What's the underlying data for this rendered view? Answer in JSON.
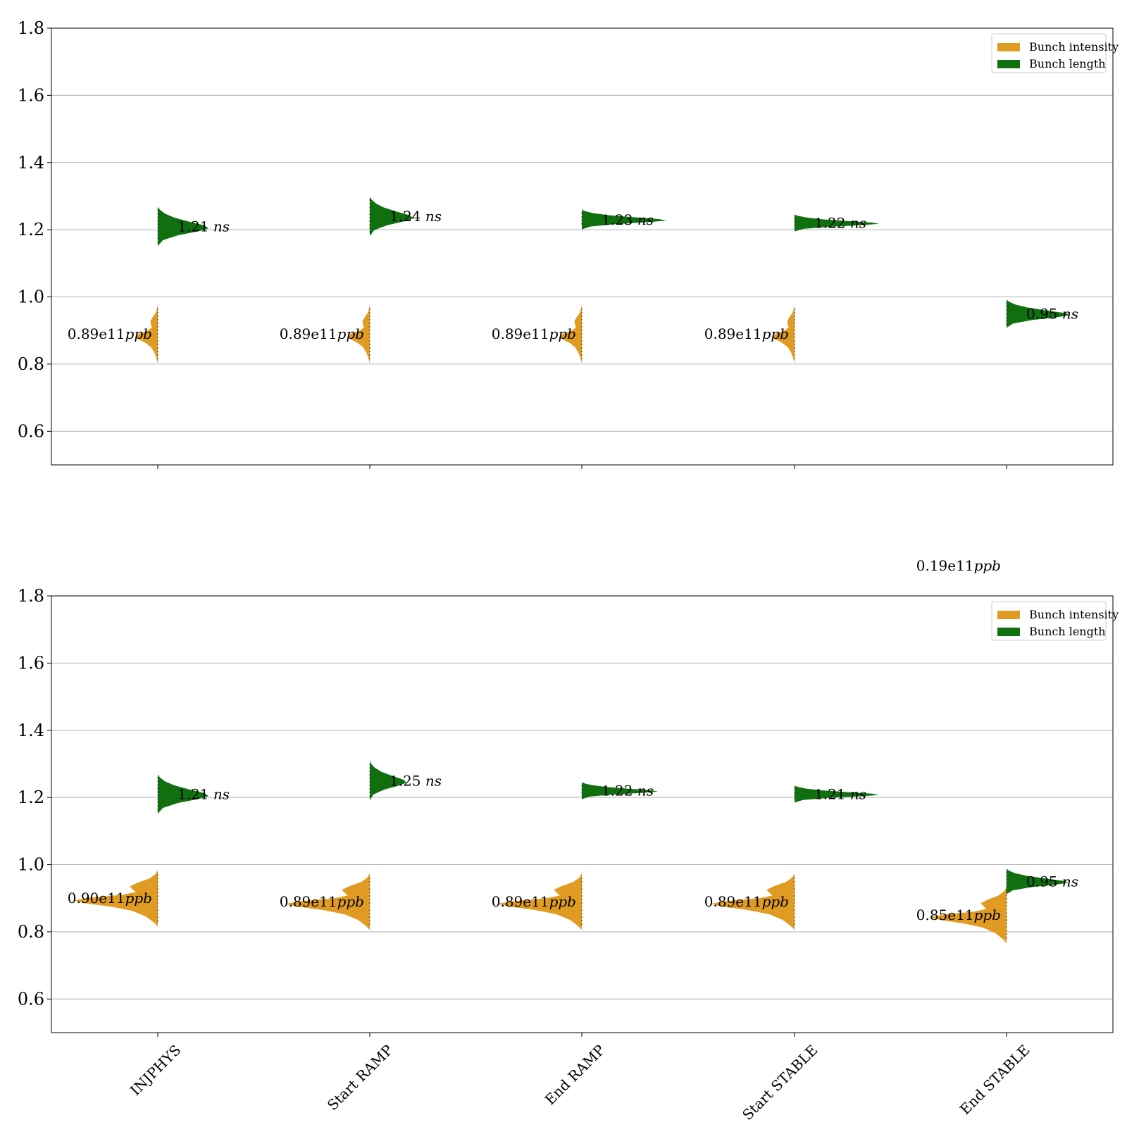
{
  "colors": {
    "intensity": "#e09b22",
    "length": "#107010",
    "grid": "#b0b0b0",
    "axis": "#000000"
  },
  "chart_data": [
    {
      "type": "violin",
      "ylim": [
        0.5,
        1.8
      ],
      "yticks": [
        "0.6",
        "0.8",
        "1.0",
        "1.2",
        "1.4",
        "1.6",
        "1.8"
      ],
      "grid": "horizontal",
      "legend": {
        "placement": "top-right",
        "entries": [
          "Bunch intensity",
          "Bunch length"
        ]
      },
      "categories": [
        "INJPHYS",
        "Start RAMP",
        "End RAMP",
        "Start STABLE",
        "End STABLE"
      ],
      "show_category_labels": false,
      "series": [
        {
          "name": "Bunch intensity",
          "values": [
            0.89,
            0.89,
            0.89,
            0.89,
            null
          ],
          "annotations": [
            "0.89e11",
            "0.89e11",
            "0.89e11",
            "0.89e11",
            "0.19e11"
          ],
          "annotation_unit": "ppb"
        },
        {
          "name": "Bunch length",
          "values": [
            1.21,
            1.24,
            1.23,
            1.22,
            0.95
          ],
          "annotations": [
            "1.21",
            "1.24",
            "1.23",
            "1.22",
            "0.95"
          ],
          "annotation_unit": "ns"
        }
      ]
    },
    {
      "type": "violin",
      "ylim": [
        0.5,
        1.8
      ],
      "yticks": [
        "0.6",
        "0.8",
        "1.0",
        "1.2",
        "1.4",
        "1.6",
        "1.8"
      ],
      "grid": "horizontal",
      "legend": {
        "placement": "top-right",
        "entries": [
          "Bunch intensity",
          "Bunch length"
        ]
      },
      "categories": [
        "INJPHYS",
        "Start RAMP",
        "End RAMP",
        "Start STABLE",
        "End STABLE"
      ],
      "show_category_labels": true,
      "series": [
        {
          "name": "Bunch intensity",
          "values": [
            0.9,
            0.89,
            0.89,
            0.89,
            0.85
          ],
          "annotations": [
            "0.90e11",
            "0.89e11",
            "0.89e11",
            "0.89e11",
            "0.85e11"
          ],
          "annotation_unit": "ppb"
        },
        {
          "name": "Bunch length",
          "values": [
            1.21,
            1.25,
            1.22,
            1.21,
            0.95
          ],
          "annotations": [
            "1.21",
            "1.25",
            "1.22",
            "1.21",
            "0.95"
          ],
          "annotation_unit": "ns"
        }
      ]
    }
  ]
}
